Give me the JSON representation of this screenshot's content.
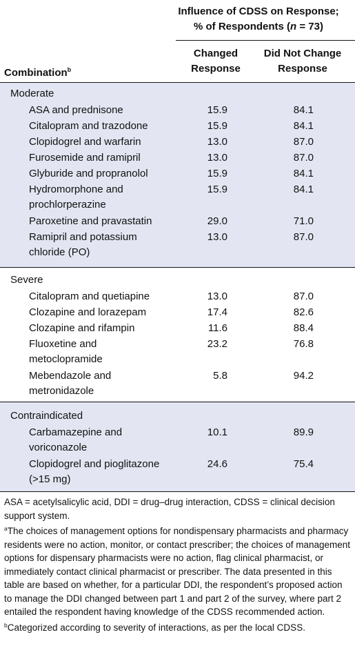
{
  "header": {
    "influence_line1": "Influence of CDSS on Response;",
    "influence_line2_prefix": "% of Respondents (",
    "influence_n": "n",
    "influence_line2_suffix": " = 73)",
    "changed_line1": "Changed",
    "changed_line2": "Response",
    "notchanged_line1": "Did Not Change",
    "notchanged_line2": "Response",
    "combination": "Combination",
    "combination_sup": "b"
  },
  "sections": [
    {
      "title": "Moderate",
      "rows": [
        {
          "name1": "ASA and prednisone",
          "name2": "",
          "changed": "15.9",
          "not_changed": "84.1"
        },
        {
          "name1": "Citalopram and trazodone",
          "name2": "",
          "changed": "15.9",
          "not_changed": "84.1"
        },
        {
          "name1": "Clopidogrel and warfarin",
          "name2": "",
          "changed": "13.0",
          "not_changed": "87.0"
        },
        {
          "name1": "Furosemide and ramipril",
          "name2": "",
          "changed": "13.0",
          "not_changed": "87.0"
        },
        {
          "name1": "Glyburide and propranolol",
          "name2": "",
          "changed": "15.9",
          "not_changed": "84.1"
        },
        {
          "name1": "Hydromorphone and",
          "name2": "prochlorperazine",
          "changed": "15.9",
          "not_changed": "84.1"
        },
        {
          "name1": "Paroxetine and pravastatin",
          "name2": "",
          "changed": "29.0",
          "not_changed": "71.0"
        },
        {
          "name1": "Ramipril and potassium",
          "name2": "chloride (PO)",
          "changed": "13.0",
          "not_changed": "87.0"
        }
      ]
    },
    {
      "title": "Severe",
      "rows": [
        {
          "name1": "Citalopram and quetiapine",
          "name2": "",
          "changed": "13.0",
          "not_changed": "87.0"
        },
        {
          "name1": "Clozapine and lorazepam",
          "name2": "",
          "changed": "17.4",
          "not_changed": "82.6"
        },
        {
          "name1": "Clozapine and rifampin",
          "name2": "",
          "changed": "11.6",
          "not_changed": "88.4"
        },
        {
          "name1": "Fluoxetine and",
          "name2": "metoclopramide",
          "changed": "23.2",
          "not_changed": "76.8"
        },
        {
          "name1": "Mebendazole and",
          "name2": "metronidazole",
          "changed": "5.8",
          "not_changed": "94.2"
        }
      ]
    },
    {
      "title": "Contraindicated",
      "rows": [
        {
          "name1": "Carbamazepine and",
          "name2": "voriconazole",
          "changed": "10.1",
          "not_changed": "89.9"
        },
        {
          "name1": "Clopidogrel and pioglitazone",
          "name2": "(>15 mg)",
          "changed": "24.6",
          "not_changed": "75.4"
        }
      ]
    }
  ],
  "notes": {
    "abbrev": "ASA = acetylsalicylic acid, DDI = drug–drug interaction, CDSS = clinical decision support system.",
    "note_a_mark": "a",
    "note_a": "The choices of management options for nondispensary pharmacists and pharmacy residents were no action, monitor, or contact prescriber; the choices of management options for dispensary pharmacists were no action, flag clinical pharmacist, or immediately contact clinical pharmacist or prescriber. The data presented in this table are based on whether, for a particular DDI, the respondent’s proposed action to manage the DDI changed between part 1 and part 2 of the survey, where part 2 entailed the respondent having knowledge of the CDSS recommended action.",
    "note_b_mark": "b",
    "note_b": "Categorized according to severity of interactions, as per the local CDSS."
  },
  "colors": {
    "shade": "#e3e6f2",
    "text": "#111111"
  }
}
